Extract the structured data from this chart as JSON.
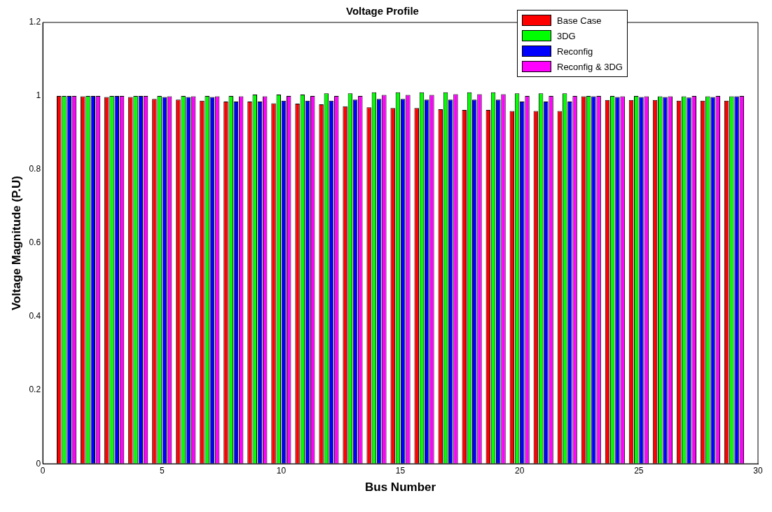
{
  "chart_data": {
    "type": "bar",
    "title": "Voltage Profile",
    "xlabel": "Bus Number",
    "ylabel": "Voltage Magnitude (P.U)",
    "x": [
      1,
      2,
      3,
      4,
      5,
      6,
      7,
      8,
      9,
      10,
      11,
      12,
      13,
      14,
      15,
      16,
      17,
      18,
      19,
      20,
      21,
      22,
      23,
      24,
      25,
      26,
      27,
      28,
      29
    ],
    "series": [
      {
        "name": "Base Case",
        "color": "#ff0000",
        "values": [
          1.0,
          0.999,
          0.997,
          0.997,
          0.992,
          0.99,
          0.987,
          0.985,
          0.985,
          0.98,
          0.979,
          0.977,
          0.972,
          0.969,
          0.967,
          0.967,
          0.964,
          0.962,
          0.962,
          0.959,
          0.959,
          0.959,
          0.999,
          0.989,
          0.989,
          0.989,
          0.987,
          0.987,
          0.987
        ]
      },
      {
        "name": "3DG",
        "color": "#00ff00",
        "values": [
          1.0,
          1.0,
          1.0,
          1.0,
          1.0,
          1.0,
          1.0,
          1.0,
          1.004,
          1.004,
          1.004,
          1.007,
          1.007,
          1.01,
          1.01,
          1.01,
          1.01,
          1.01,
          1.01,
          1.007,
          1.007,
          1.007,
          1.0,
          1.0,
          1.0,
          0.999,
          0.999,
          0.999,
          0.999
        ]
      },
      {
        "name": "Reconfig",
        "color": "#0000ff",
        "values": [
          1.0,
          1.0,
          1.0,
          1.0,
          0.997,
          0.997,
          0.997,
          0.985,
          0.985,
          0.987,
          0.987,
          0.987,
          0.99,
          0.992,
          0.992,
          0.99,
          0.99,
          0.99,
          0.99,
          0.985,
          0.985,
          0.985,
          0.999,
          0.997,
          0.997,
          0.997,
          0.996,
          0.997,
          0.999
        ]
      },
      {
        "name": "Reconfig & 3DG",
        "color": "#ff00ff",
        "values": [
          1.0,
          1.0,
          1.0,
          1.0,
          0.999,
          0.999,
          0.999,
          0.999,
          0.999,
          1.0,
          1.0,
          1.0,
          1.0,
          1.003,
          1.003,
          1.003,
          1.005,
          1.005,
          1.005,
          1.0,
          1.0,
          1.0,
          1.0,
          0.999,
          0.999,
          0.999,
          1.0,
          1.0,
          1.0
        ]
      }
    ],
    "xlim": [
      0,
      30
    ],
    "xticks": [
      0,
      5,
      10,
      15,
      20,
      25,
      30
    ],
    "ylim": [
      0,
      1.2
    ],
    "yticks": [
      0,
      0.2,
      0.4,
      0.6,
      0.8,
      1,
      1.2
    ],
    "grid": false,
    "legend": "top right"
  }
}
